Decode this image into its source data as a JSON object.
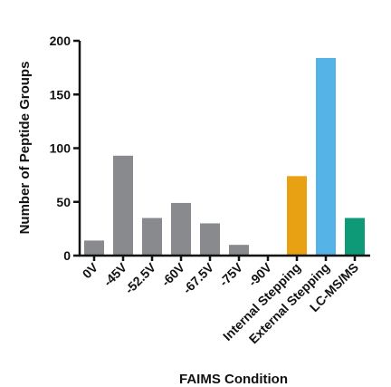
{
  "chart_data": {
    "type": "bar",
    "title": "",
    "xlabel": "FAIMS Condition",
    "ylabel": "Number of Peptide Groups",
    "categories": [
      "0V",
      "-45V",
      "-52.5V",
      "-60V",
      "-67.5V",
      "-75V",
      "-90V",
      "Internal Stepping",
      "External Stepping",
      "LC-MS/MS"
    ],
    "values": [
      14,
      93,
      35,
      49,
      30,
      10,
      0,
      74,
      184,
      35
    ],
    "bar_colors": [
      "#898a8e",
      "#898a8e",
      "#898a8e",
      "#898a8e",
      "#898a8e",
      "#898a8e",
      "#898a8e",
      "#e8a112",
      "#55b3e8",
      "#0e9a76"
    ],
    "ylim": [
      0,
      200
    ],
    "yticks": [
      0,
      50,
      100,
      150,
      200
    ],
    "grid": false,
    "legend": "none"
  }
}
